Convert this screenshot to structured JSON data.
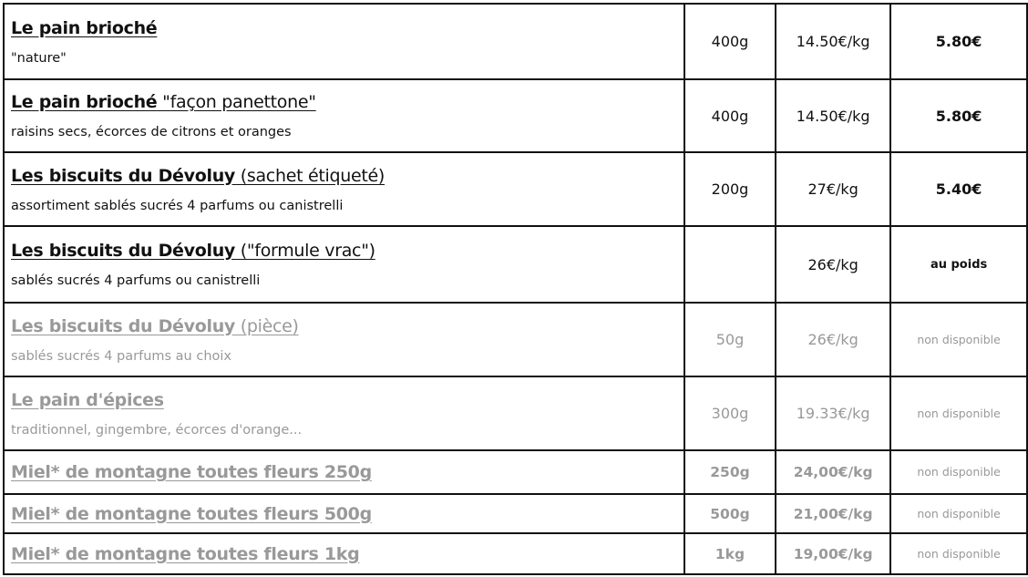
{
  "products": [
    {
      "name_bold": "Le pain brioché",
      "name_rest": "",
      "desc": "\"nature\"",
      "weight": "400g",
      "price_per_kg": "14.50€/kg",
      "price": "5.80€",
      "available": true
    },
    {
      "name_bold": "Le pain brioché",
      "name_rest": " \"façon panettone\"",
      "desc": "raisins secs, écorces de citrons et oranges",
      "weight": "400g",
      "price_per_kg": "14.50€/kg",
      "price": "5.80€",
      "available": true
    },
    {
      "name_bold": "Les biscuits du Dévoluy",
      "name_rest": " (sachet étiqueté)",
      "desc": "assortiment sablés sucrés 4 parfums ou canistrelli",
      "weight": "200g",
      "price_per_kg": "27€/kg",
      "price": "5.40€",
      "available": true
    },
    {
      "name_bold": "Les biscuits du Dévoluy",
      "name_rest": " (\"formule vrac\")",
      "desc": "sablés sucrés 4 parfums ou canistrelli",
      "weight": "",
      "price_per_kg": "26€/kg",
      "price": "au poids",
      "available": true
    },
    {
      "name_bold": "Les biscuits du Dévoluy",
      "name_rest": " (pièce)",
      "desc": "sablés sucrés 4 parfums au choix",
      "weight": "50g",
      "price_per_kg": "26€/kg",
      "price": "non disponible",
      "available": false
    },
    {
      "name_bold": "Le pain d'épices",
      "name_rest": "",
      "desc": "traditionnel, gingembre, écorces d'orange...",
      "weight": "300g",
      "price_per_kg": "19.33€/kg",
      "price": "non disponible",
      "available": false
    },
    {
      "name_bold": "Miel* de montagne toutes fleurs 250g",
      "name_rest": "",
      "desc": "",
      "weight": "250g",
      "price_per_kg": "24,00€/kg",
      "price": "non disponible",
      "available": false
    },
    {
      "name_bold": "Miel* de montagne toutes fleurs 500g",
      "name_rest": "",
      "desc": "",
      "weight": "500g",
      "price_per_kg": "21,00€/kg",
      "price": "non disponible",
      "available": false
    },
    {
      "name_bold": "Miel* de montagne toutes fleurs 1kg",
      "name_rest": "",
      "desc": "",
      "weight": "1kg",
      "price_per_kg": "19,00€/kg",
      "price": "non disponible",
      "available": false
    }
  ],
  "colors": {
    "available_text": "#111111",
    "unavailable_text": "#999999",
    "border": "#111111"
  }
}
